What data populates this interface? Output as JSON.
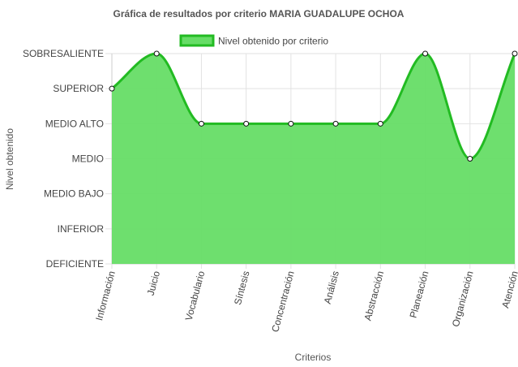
{
  "chart_data": {
    "type": "area",
    "title": "Gráfica de resultados por criterio MARIA GUADALUPE OCHOA",
    "xlabel": "Criterios",
    "ylabel": "Nivel obtenido",
    "levels": [
      "DEFICIENTE",
      "INFERIOR",
      "MEDIO BAJO",
      "MEDIO",
      "MEDIO ALTO",
      "SUPERIOR",
      "SOBRESALIENTE"
    ],
    "categories": [
      "Información",
      "Juicio",
      "Vocabulario",
      "Síntesis",
      "Concentración",
      "Análisis",
      "Abstracción",
      "Planeación",
      "Organización",
      "Atención"
    ],
    "ylim": [
      0,
      6
    ],
    "grid": true,
    "legend_position": "top",
    "series": [
      {
        "name": "Nivel obtenido por criterio",
        "values": [
          5,
          6,
          4,
          4,
          4,
          4,
          4,
          6,
          3,
          6
        ],
        "value_labels": [
          "SUPERIOR",
          "SOBRESALIENTE",
          "MEDIO ALTO",
          "MEDIO ALTO",
          "MEDIO ALTO",
          "MEDIO ALTO",
          "MEDIO ALTO",
          "SOBRESALIENTE",
          "MEDIO",
          "SOBRESALIENTE"
        ],
        "fill_color": "#66dd66",
        "line_color": "#22bb22"
      }
    ]
  }
}
